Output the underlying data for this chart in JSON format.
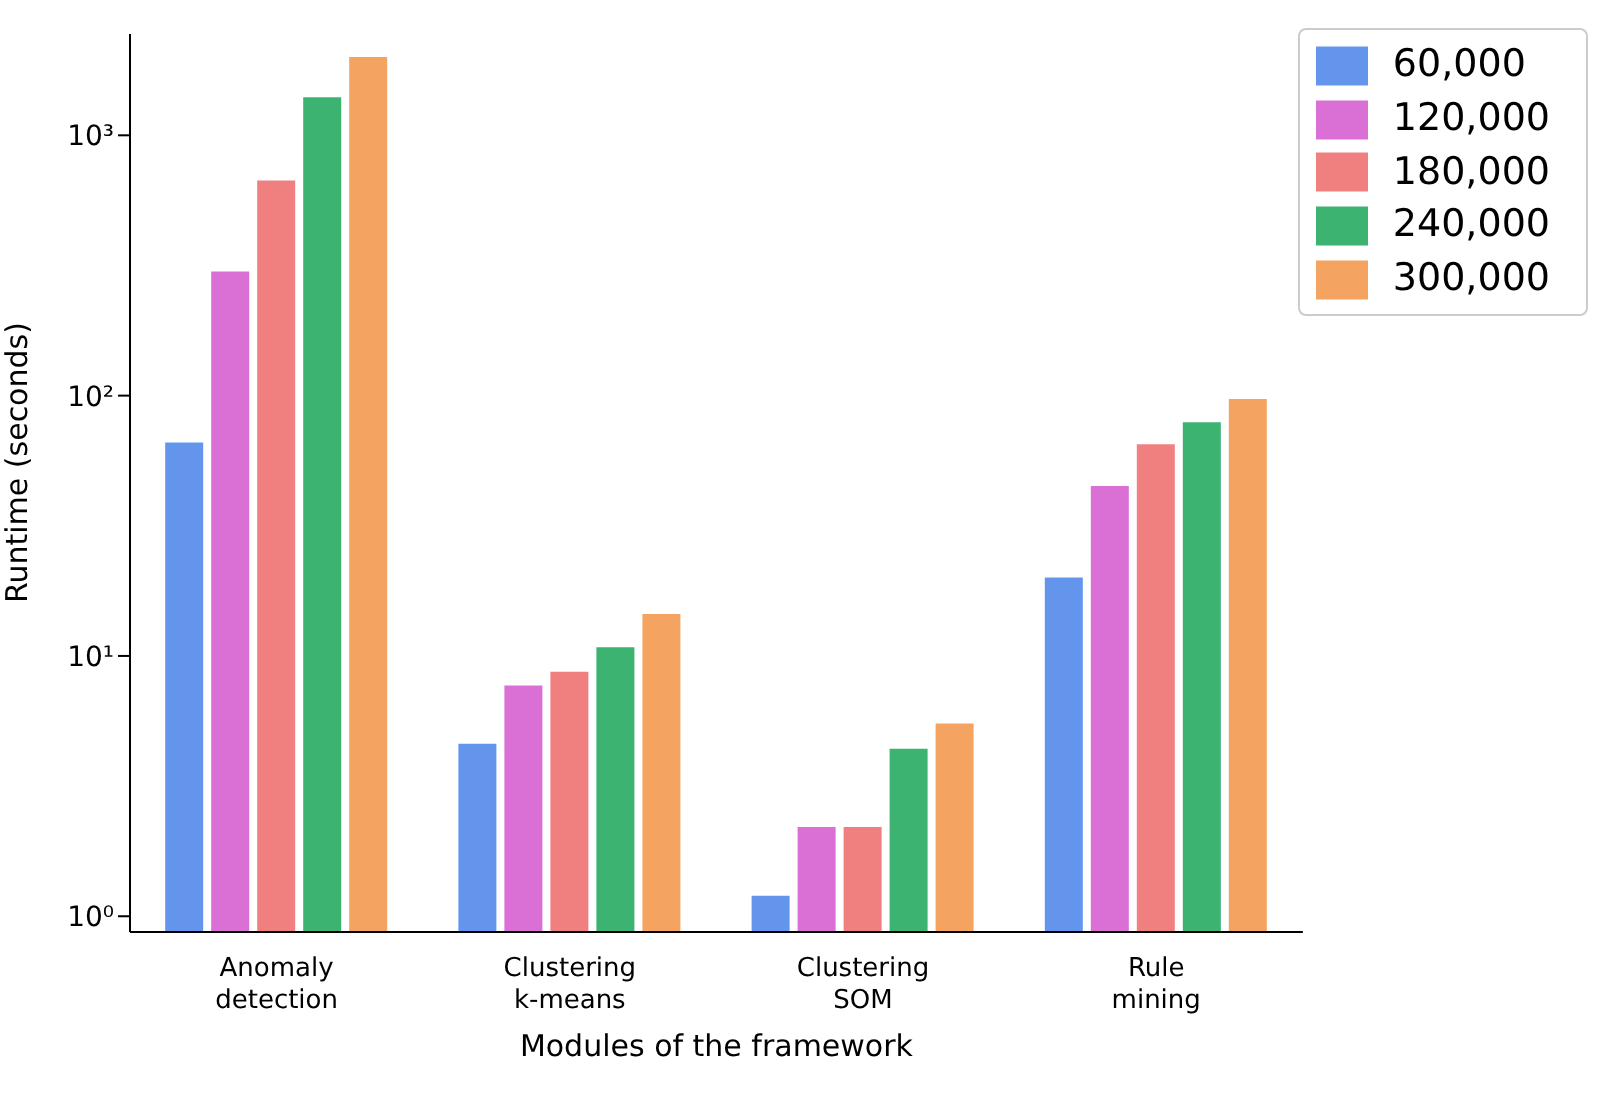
{
  "chart_data": {
    "type": "bar",
    "xlabel": "Modules of the framework",
    "ylabel": "Runtime (seconds)",
    "categories": [
      "Anomaly\ndetection",
      "Clustering\nk-means",
      "Clustering\nSOM",
      "Rule\nmining"
    ],
    "series": [
      {
        "name": "60,000",
        "color": "#6495ed",
        "values": [
          66,
          4.6,
          1.2,
          20
        ]
      },
      {
        "name": "120,000",
        "color": "#da70d6",
        "values": [
          300,
          7.7,
          2.2,
          45
        ]
      },
      {
        "name": "180,000",
        "color": "#f08080",
        "values": [
          670,
          8.7,
          2.2,
          65
        ]
      },
      {
        "name": "240,000",
        "color": "#3cb371",
        "values": [
          1400,
          10.8,
          4.4,
          79
        ]
      },
      {
        "name": "300,000",
        "color": "#f4a460",
        "values": [
          2000,
          14.5,
          5.5,
          97
        ]
      }
    ],
    "log": "y",
    "ylim": [
      0.87,
      2450
    ],
    "yticks": [
      {
        "value": 1,
        "label": "10⁰"
      },
      {
        "value": 10,
        "label": "10¹"
      },
      {
        "value": 100,
        "label": "10²"
      },
      {
        "value": 1000,
        "label": "10³"
      }
    ],
    "grid": false,
    "legend": "top right"
  }
}
